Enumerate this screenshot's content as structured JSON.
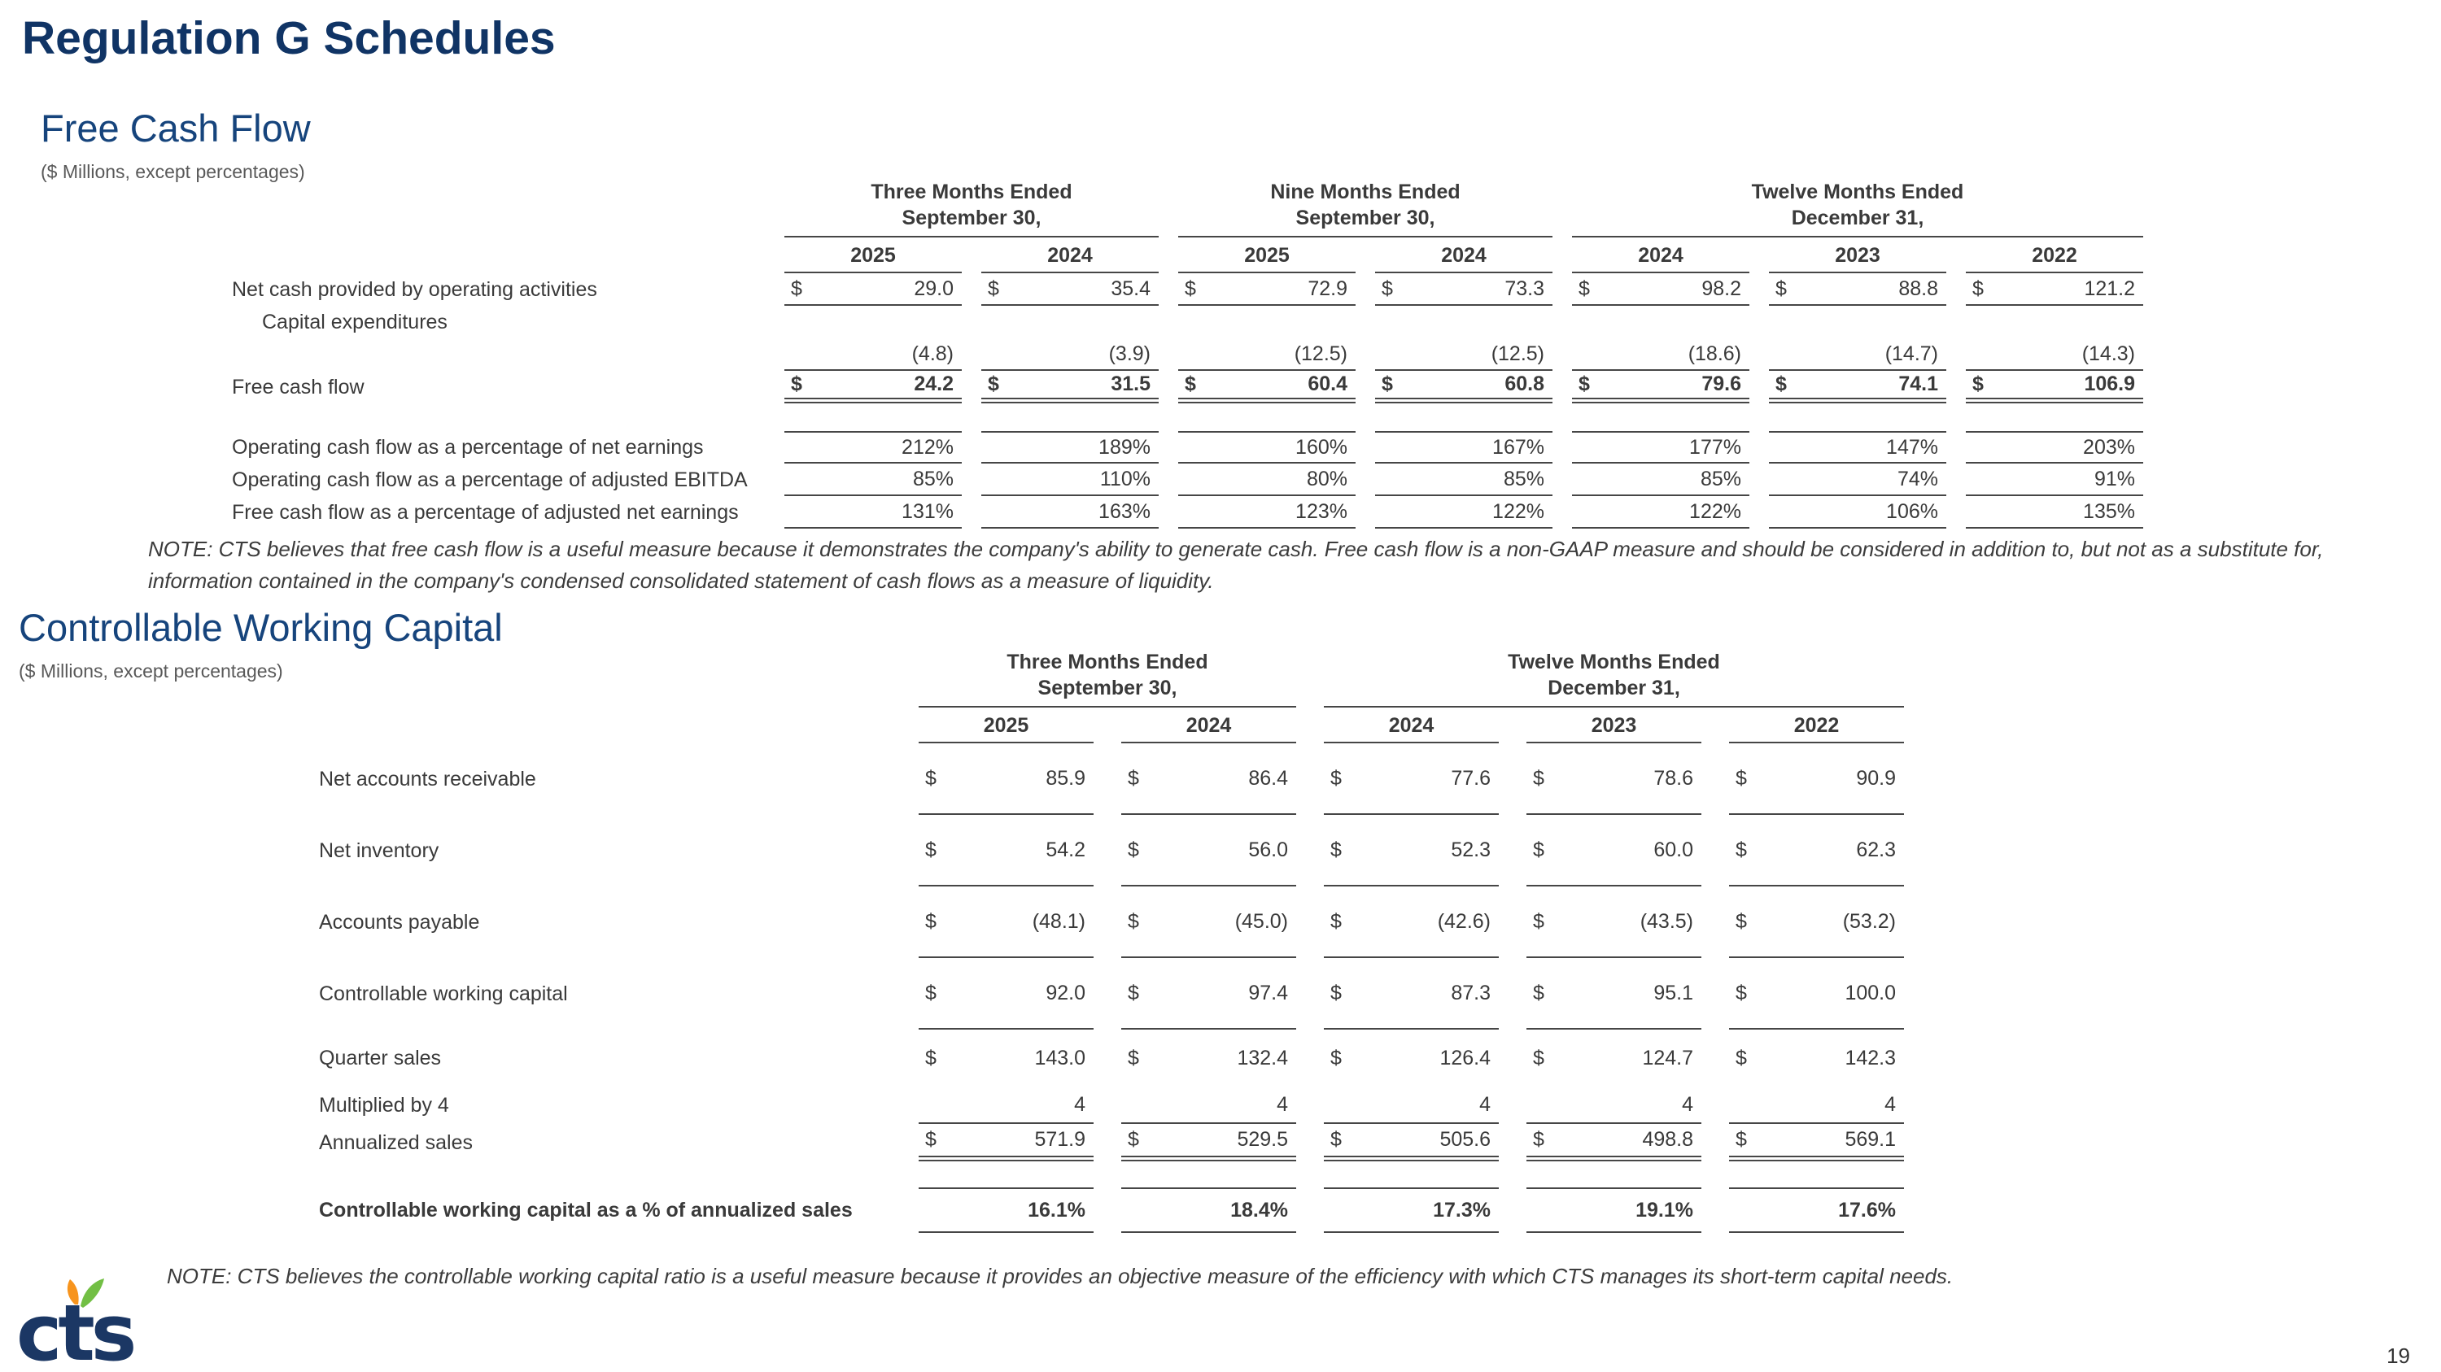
{
  "page": {
    "title": "Regulation G Schedules",
    "page_number": "19",
    "logo_text": "cts",
    "colors": {
      "navy": "#103465",
      "logo_orange": "#f7941d",
      "logo_green": "#72bf44"
    }
  },
  "free_cash_flow": {
    "heading": "Free Cash Flow",
    "subheading": "($ Millions, except percentages)",
    "column_groups": [
      {
        "label": "Three Months Ended\nSeptember 30,",
        "span": 2
      },
      {
        "label": "Nine Months Ended\nSeptember 30,",
        "span": 2
      },
      {
        "label": "Twelve Months Ended\nDecember 31,",
        "span": 3
      }
    ],
    "years": [
      "2025",
      "2024",
      "2025",
      "2024",
      "2024",
      "2023",
      "2022"
    ],
    "rows": [
      {
        "label": "Net cash provided by operating activities",
        "dollar": true,
        "values": [
          "29.0",
          "35.4",
          "72.9",
          "73.3",
          "98.2",
          "88.8",
          "121.2"
        ],
        "cls": "u"
      },
      {
        "label": "Capital expenditures",
        "cls": "indent"
      },
      {
        "label": "",
        "values": [
          "(4.8)",
          "(3.9)",
          "(12.5)",
          "(12.5)",
          "(18.6)",
          "(14.7)",
          "(14.3)"
        ],
        "cls": "u"
      },
      {
        "label": "Free cash flow",
        "dollar": true,
        "values": [
          "24.2",
          "31.5",
          "60.4",
          "60.8",
          "79.6",
          "74.1",
          "106.9"
        ],
        "cls": "bold dbl"
      },
      {
        "label": "",
        "cls": "spacer"
      },
      {
        "label": "Operating cash flow as a percentage of net earnings",
        "values": [
          "212%",
          "189%",
          "160%",
          "167%",
          "177%",
          "147%",
          "203%"
        ],
        "cls": "u top"
      },
      {
        "label": "Operating cash flow as a percentage of adjusted EBITDA",
        "values": [
          "85%",
          "110%",
          "80%",
          "85%",
          "85%",
          "74%",
          "91%"
        ],
        "cls": "u"
      },
      {
        "label": "Free cash flow as a percentage of adjusted net earnings",
        "values": [
          "131%",
          "163%",
          "123%",
          "122%",
          "122%",
          "106%",
          "135%"
        ],
        "cls": "u"
      }
    ],
    "note": "NOTE: CTS believes that free cash flow is a useful measure because it demonstrates the company's ability to generate cash. Free cash flow is a non-GAAP measure and should be considered in addition to, but not as a substitute for, information contained in the company's condensed consolidated statement of cash flows as a measure of liquidity."
  },
  "controllable_working_capital": {
    "heading": "Controllable Working Capital",
    "subheading": "($ Millions, except percentages)",
    "column_groups": [
      {
        "label": "Three Months Ended\nSeptember 30,",
        "span": 2
      },
      {
        "label": "Twelve Months Ended\nDecember 31,",
        "span": 3
      }
    ],
    "years": [
      "2025",
      "2024",
      "2024",
      "2023",
      "2022"
    ],
    "rows": [
      {
        "label": "Net accounts receivable",
        "dollar": true,
        "values": [
          "85.9",
          "86.4",
          "77.6",
          "78.6",
          "90.9"
        ],
        "cls": "u"
      },
      {
        "label": "Net inventory",
        "dollar": true,
        "values": [
          "54.2",
          "56.0",
          "52.3",
          "60.0",
          "62.3"
        ],
        "cls": "u"
      },
      {
        "label": "Accounts payable",
        "dollar": true,
        "values": [
          "(48.1)",
          "(45.0)",
          "(42.6)",
          "(43.5)",
          "(53.2)"
        ],
        "cls": "u"
      },
      {
        "label": "Controllable working capital",
        "dollar": true,
        "values": [
          "92.0",
          "97.4",
          "87.3",
          "95.1",
          "100.0"
        ],
        "cls": "u"
      },
      {
        "label": "Quarter sales",
        "dollar": true,
        "values": [
          "143.0",
          "132.4",
          "126.4",
          "124.7",
          "142.3"
        ],
        "cls": "med"
      },
      {
        "label": "Multiplied by 4",
        "values": [
          "4",
          "4",
          "4",
          "4",
          "4"
        ],
        "cls": "short u"
      },
      {
        "label": "Annualized sales",
        "dollar": true,
        "values": [
          "571.9",
          "529.5",
          "505.6",
          "498.8",
          "569.1"
        ],
        "cls": "short dbl"
      },
      {
        "label": "",
        "cls": "spacer-sm"
      },
      {
        "label": "Controllable working capital as a % of annualized sales",
        "values": [
          "16.1%",
          "18.4%",
          "17.3%",
          "19.1%",
          "17.6%"
        ],
        "cls": "final lbold bold top u"
      }
    ],
    "note": "NOTE: CTS believes the controllable working capital ratio is a useful measure because it provides an objective measure of the efficiency with which CTS manages its short-term capital needs."
  }
}
